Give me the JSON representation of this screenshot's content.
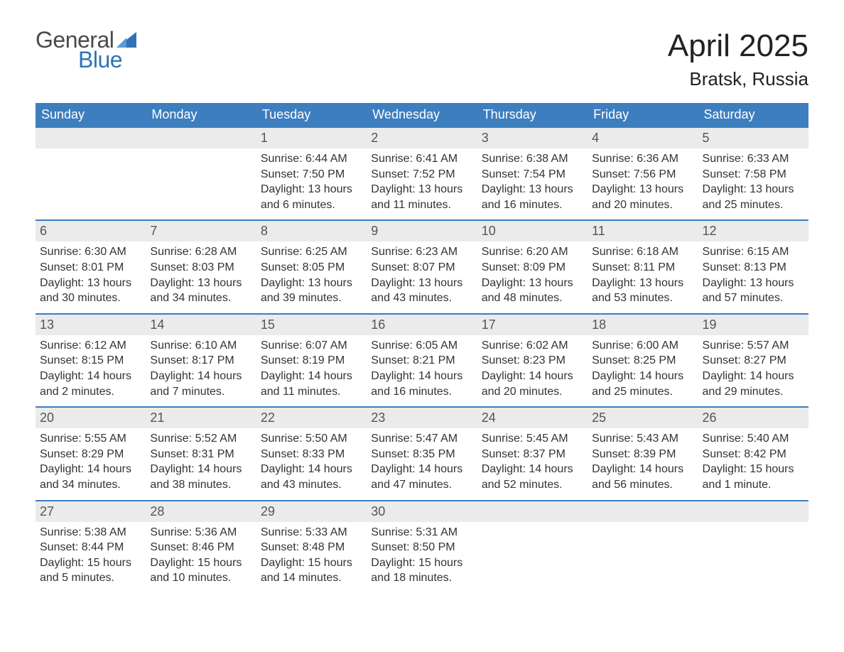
{
  "brand": {
    "word1": "General",
    "word2": "Blue",
    "sail_color": "#2f73b5",
    "text_gray": "#4a4a4a"
  },
  "header": {
    "month": "April 2025",
    "location": "Bratsk, Russia"
  },
  "theme": {
    "header_bg": "#3d7ebf",
    "header_text": "#ffffff",
    "daynum_bg": "#ebebeb",
    "daynum_border": "#3d7ebf",
    "body_text": "#333333"
  },
  "weekdays": [
    "Sunday",
    "Monday",
    "Tuesday",
    "Wednesday",
    "Thursday",
    "Friday",
    "Saturday"
  ],
  "labels": {
    "sunrise": "Sunrise:",
    "sunset": "Sunset:",
    "daylight": "Daylight:"
  },
  "weeks": [
    [
      null,
      null,
      {
        "n": "1",
        "sr": "6:44 AM",
        "ss": "7:50 PM",
        "dl": "13 hours and 6 minutes."
      },
      {
        "n": "2",
        "sr": "6:41 AM",
        "ss": "7:52 PM",
        "dl": "13 hours and 11 minutes."
      },
      {
        "n": "3",
        "sr": "6:38 AM",
        "ss": "7:54 PM",
        "dl": "13 hours and 16 minutes."
      },
      {
        "n": "4",
        "sr": "6:36 AM",
        "ss": "7:56 PM",
        "dl": "13 hours and 20 minutes."
      },
      {
        "n": "5",
        "sr": "6:33 AM",
        "ss": "7:58 PM",
        "dl": "13 hours and 25 minutes."
      }
    ],
    [
      {
        "n": "6",
        "sr": "6:30 AM",
        "ss": "8:01 PM",
        "dl": "13 hours and 30 minutes."
      },
      {
        "n": "7",
        "sr": "6:28 AM",
        "ss": "8:03 PM",
        "dl": "13 hours and 34 minutes."
      },
      {
        "n": "8",
        "sr": "6:25 AM",
        "ss": "8:05 PM",
        "dl": "13 hours and 39 minutes."
      },
      {
        "n": "9",
        "sr": "6:23 AM",
        "ss": "8:07 PM",
        "dl": "13 hours and 43 minutes."
      },
      {
        "n": "10",
        "sr": "6:20 AM",
        "ss": "8:09 PM",
        "dl": "13 hours and 48 minutes."
      },
      {
        "n": "11",
        "sr": "6:18 AM",
        "ss": "8:11 PM",
        "dl": "13 hours and 53 minutes."
      },
      {
        "n": "12",
        "sr": "6:15 AM",
        "ss": "8:13 PM",
        "dl": "13 hours and 57 minutes."
      }
    ],
    [
      {
        "n": "13",
        "sr": "6:12 AM",
        "ss": "8:15 PM",
        "dl": "14 hours and 2 minutes."
      },
      {
        "n": "14",
        "sr": "6:10 AM",
        "ss": "8:17 PM",
        "dl": "14 hours and 7 minutes."
      },
      {
        "n": "15",
        "sr": "6:07 AM",
        "ss": "8:19 PM",
        "dl": "14 hours and 11 minutes."
      },
      {
        "n": "16",
        "sr": "6:05 AM",
        "ss": "8:21 PM",
        "dl": "14 hours and 16 minutes."
      },
      {
        "n": "17",
        "sr": "6:02 AM",
        "ss": "8:23 PM",
        "dl": "14 hours and 20 minutes."
      },
      {
        "n": "18",
        "sr": "6:00 AM",
        "ss": "8:25 PM",
        "dl": "14 hours and 25 minutes."
      },
      {
        "n": "19",
        "sr": "5:57 AM",
        "ss": "8:27 PM",
        "dl": "14 hours and 29 minutes."
      }
    ],
    [
      {
        "n": "20",
        "sr": "5:55 AM",
        "ss": "8:29 PM",
        "dl": "14 hours and 34 minutes."
      },
      {
        "n": "21",
        "sr": "5:52 AM",
        "ss": "8:31 PM",
        "dl": "14 hours and 38 minutes."
      },
      {
        "n": "22",
        "sr": "5:50 AM",
        "ss": "8:33 PM",
        "dl": "14 hours and 43 minutes."
      },
      {
        "n": "23",
        "sr": "5:47 AM",
        "ss": "8:35 PM",
        "dl": "14 hours and 47 minutes."
      },
      {
        "n": "24",
        "sr": "5:45 AM",
        "ss": "8:37 PM",
        "dl": "14 hours and 52 minutes."
      },
      {
        "n": "25",
        "sr": "5:43 AM",
        "ss": "8:39 PM",
        "dl": "14 hours and 56 minutes."
      },
      {
        "n": "26",
        "sr": "5:40 AM",
        "ss": "8:42 PM",
        "dl": "15 hours and 1 minute."
      }
    ],
    [
      {
        "n": "27",
        "sr": "5:38 AM",
        "ss": "8:44 PM",
        "dl": "15 hours and 5 minutes."
      },
      {
        "n": "28",
        "sr": "5:36 AM",
        "ss": "8:46 PM",
        "dl": "15 hours and 10 minutes."
      },
      {
        "n": "29",
        "sr": "5:33 AM",
        "ss": "8:48 PM",
        "dl": "15 hours and 14 minutes."
      },
      {
        "n": "30",
        "sr": "5:31 AM",
        "ss": "8:50 PM",
        "dl": "15 hours and 18 minutes."
      },
      null,
      null,
      null
    ]
  ]
}
